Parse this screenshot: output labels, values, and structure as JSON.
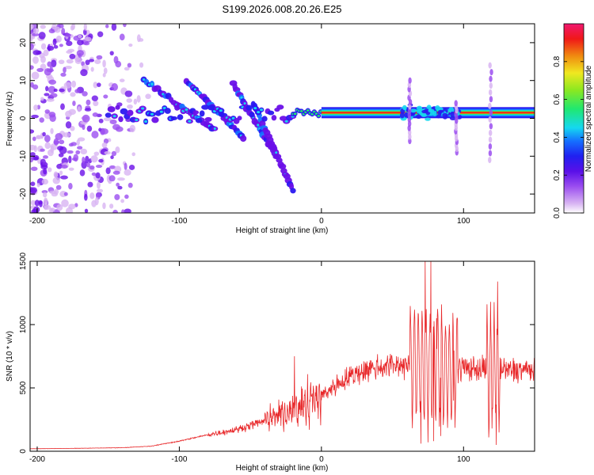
{
  "title": "S199.2026.008.20.26.E25",
  "colors": {
    "line": "#e8282a",
    "axis": "#000000",
    "colormap": [
      "#ffffff",
      "#d8b4f2",
      "#9b4ef0",
      "#6a0fe8",
      "#2a18f0",
      "#1570ff",
      "#15d8f0",
      "#20e870",
      "#8ce820",
      "#f0e820",
      "#f08a10",
      "#f01818",
      "#f01870"
    ]
  },
  "chart_data": [
    {
      "type": "heatmap",
      "name": "spectrogram",
      "xlabel": "Height of straight line (km)",
      "ylabel": "Frequency (Hz)",
      "xlim": [
        -205,
        150
      ],
      "ylim": [
        -25,
        25
      ],
      "xticks": [
        -200,
        -100,
        0,
        100
      ],
      "yticks": [
        -20,
        -10,
        0,
        10,
        20
      ],
      "colorbar": {
        "label": "Normalized spectral amplitude",
        "range": [
          0,
          1
        ],
        "ticks": [
          "0.0",
          "0.2",
          "0.4",
          "0.6",
          "0.8"
        ]
      },
      "features": {
        "noise_region_x": [
          -205,
          -120
        ],
        "noise_freq_range": [
          -25,
          25
        ],
        "dispersed_branches": [
          {
            "x": [
              -125,
              -75
            ],
            "freq": [
              10,
              -3
            ]
          },
          {
            "x": [
              -95,
              -55
            ],
            "freq": [
              10,
              -5
            ]
          },
          {
            "x": [
              -62,
              -32
            ],
            "freq": [
              9,
              -10
            ]
          },
          {
            "x": [
              -48,
              -20
            ],
            "freq": [
              4,
              -19
            ]
          }
        ],
        "main_band": {
          "x": [
            -150,
            150
          ],
          "freq": [
            -1,
            3
          ]
        },
        "strong_band": {
          "x": [
            -20,
            150
          ],
          "freq": 1.5
        },
        "vertical_streaks": [
          {
            "x": 62,
            "freq": [
              -6,
              10
            ]
          },
          {
            "x": 95,
            "freq": [
              -9,
              4
            ]
          },
          {
            "x": 119,
            "freq": [
              -11,
              14
            ]
          }
        ]
      }
    },
    {
      "type": "line",
      "name": "snr",
      "xlabel": "Height of straight line (km)",
      "ylabel": "SNR (10 * v/v)",
      "xlim": [
        -205,
        150
      ],
      "ylim": [
        0,
        1500
      ],
      "xticks": [
        -200,
        -100,
        0,
        100
      ],
      "yticks": [
        0,
        500,
        1000,
        1500
      ],
      "series": [
        {
          "name": "SNR",
          "x": [
            -205,
            -180,
            -160,
            -140,
            -120,
            -100,
            -80,
            -60,
            -40,
            -30,
            -20,
            -10,
            0,
            10,
            20,
            30,
            40,
            50,
            60,
            65,
            70,
            75,
            80,
            85,
            90,
            95,
            100,
            105,
            110,
            115,
            118,
            120,
            122,
            125,
            130,
            140,
            150
          ],
          "baseline": [
            20,
            22,
            25,
            28,
            40,
            80,
            130,
            170,
            240,
            280,
            330,
            380,
            440,
            520,
            590,
            640,
            665,
            680,
            690,
            690,
            680,
            670,
            665,
            660,
            645,
            650,
            660,
            655,
            650,
            650,
            640,
            635,
            650,
            640,
            640,
            645,
            640
          ],
          "peaks": [
            {
              "x": -19,
              "y": 750
            },
            {
              "x": 68,
              "y": 1090
            },
            {
              "x": 73,
              "y": 1500
            },
            {
              "x": 77,
              "y": 1500
            },
            {
              "x": 81,
              "y": 1050
            },
            {
              "x": 87,
              "y": 910
            },
            {
              "x": 93,
              "y": 940
            },
            {
              "x": 119,
              "y": 1180
            },
            {
              "x": 124,
              "y": 1340
            }
          ],
          "troughs": [
            {
              "x": 70,
              "y": 60
            },
            {
              "x": 75,
              "y": 70
            },
            {
              "x": 79,
              "y": 80
            },
            {
              "x": 84,
              "y": 120
            },
            {
              "x": 93,
              "y": 400
            },
            {
              "x": 120,
              "y": 180
            },
            {
              "x": 123,
              "y": 50
            }
          ]
        }
      ]
    }
  ]
}
